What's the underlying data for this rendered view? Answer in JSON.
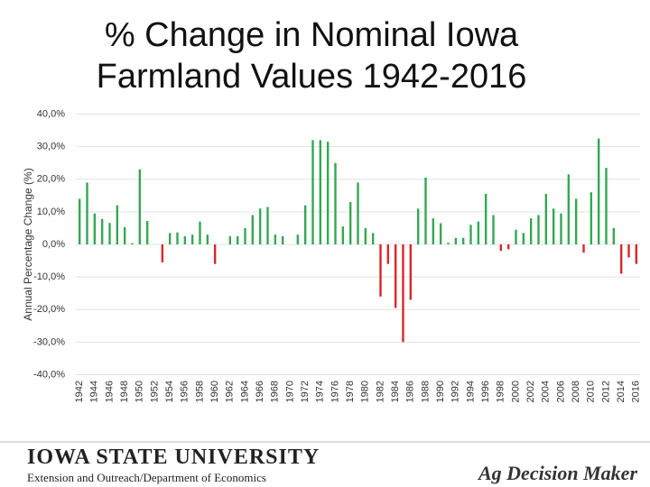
{
  "chart_data": {
    "type": "bar",
    "title": "% Change in Nominal Iowa Farmland Values 1942-2016",
    "y_label": "Annual Percentage Change (%)",
    "categories": [
      "1942",
      null,
      "1944",
      null,
      "1946",
      null,
      "1948",
      null,
      "1950",
      null,
      "1952",
      null,
      "1954",
      null,
      "1956",
      null,
      "1958",
      null,
      "1960",
      null,
      "1962",
      null,
      "1964",
      null,
      "1966",
      null,
      "1968",
      null,
      "1970",
      null,
      "1972",
      null,
      "1974",
      null,
      "1976",
      null,
      "1978",
      null,
      "1980",
      null,
      "1982",
      null,
      "1984",
      null,
      "1986",
      null,
      "1988",
      null,
      "1990",
      null,
      "1992",
      null,
      "1994",
      null,
      "1996",
      null,
      "1998",
      null,
      "2000",
      null,
      "2002",
      null,
      "2004",
      null,
      "2006",
      null,
      "2008",
      null,
      "2010",
      null,
      "2012",
      null,
      "2014",
      null,
      "2016"
    ],
    "values": [
      14,
      19,
      9.5,
      7.8,
      6.6,
      12,
      5.3,
      0.4,
      23,
      7.2,
      0,
      -5.5,
      3.5,
      3.7,
      2.5,
      3,
      7,
      3,
      -6,
      0,
      2.5,
      2.5,
      5,
      9,
      11,
      11.5,
      3,
      2.5,
      0,
      3,
      12,
      32,
      32,
      31.5,
      25,
      5.5,
      13,
      19,
      5,
      3.5,
      -16,
      -6,
      -19.5,
      -30,
      -17,
      11,
      20.5,
      8,
      6.5,
      0.5,
      2,
      2,
      6,
      7,
      15.5,
      9,
      -2,
      -1.5,
      4.5,
      3.5,
      8,
      9,
      15.5,
      11,
      9.5,
      21.5,
      14,
      -2.5,
      16,
      32.5,
      23.5,
      5,
      -9,
      -4,
      -6
    ],
    "colors": {
      "positive": "#33a852",
      "negative": "#d9262b"
    },
    "ylim": [
      -40,
      40
    ],
    "yticks": [
      {
        "value": -40,
        "label": "-40,0%"
      },
      {
        "value": -30,
        "label": "-30,0%"
      },
      {
        "value": -20,
        "label": "-20,0%"
      },
      {
        "value": -10,
        "label": "-10,0%"
      },
      {
        "value": 0,
        "label": "0,0%"
      },
      {
        "value": 10,
        "label": "10,0%"
      },
      {
        "value": 20,
        "label": "20,0%"
      },
      {
        "value": 30,
        "label": "30,0%"
      },
      {
        "value": 40,
        "label": "40,0%"
      }
    ],
    "grid": true
  },
  "footer": {
    "university": "IOWA STATE UNIVERSITY",
    "department": "Extension and Outreach/Department of Economics",
    "brand": "Ag Decision Maker"
  }
}
